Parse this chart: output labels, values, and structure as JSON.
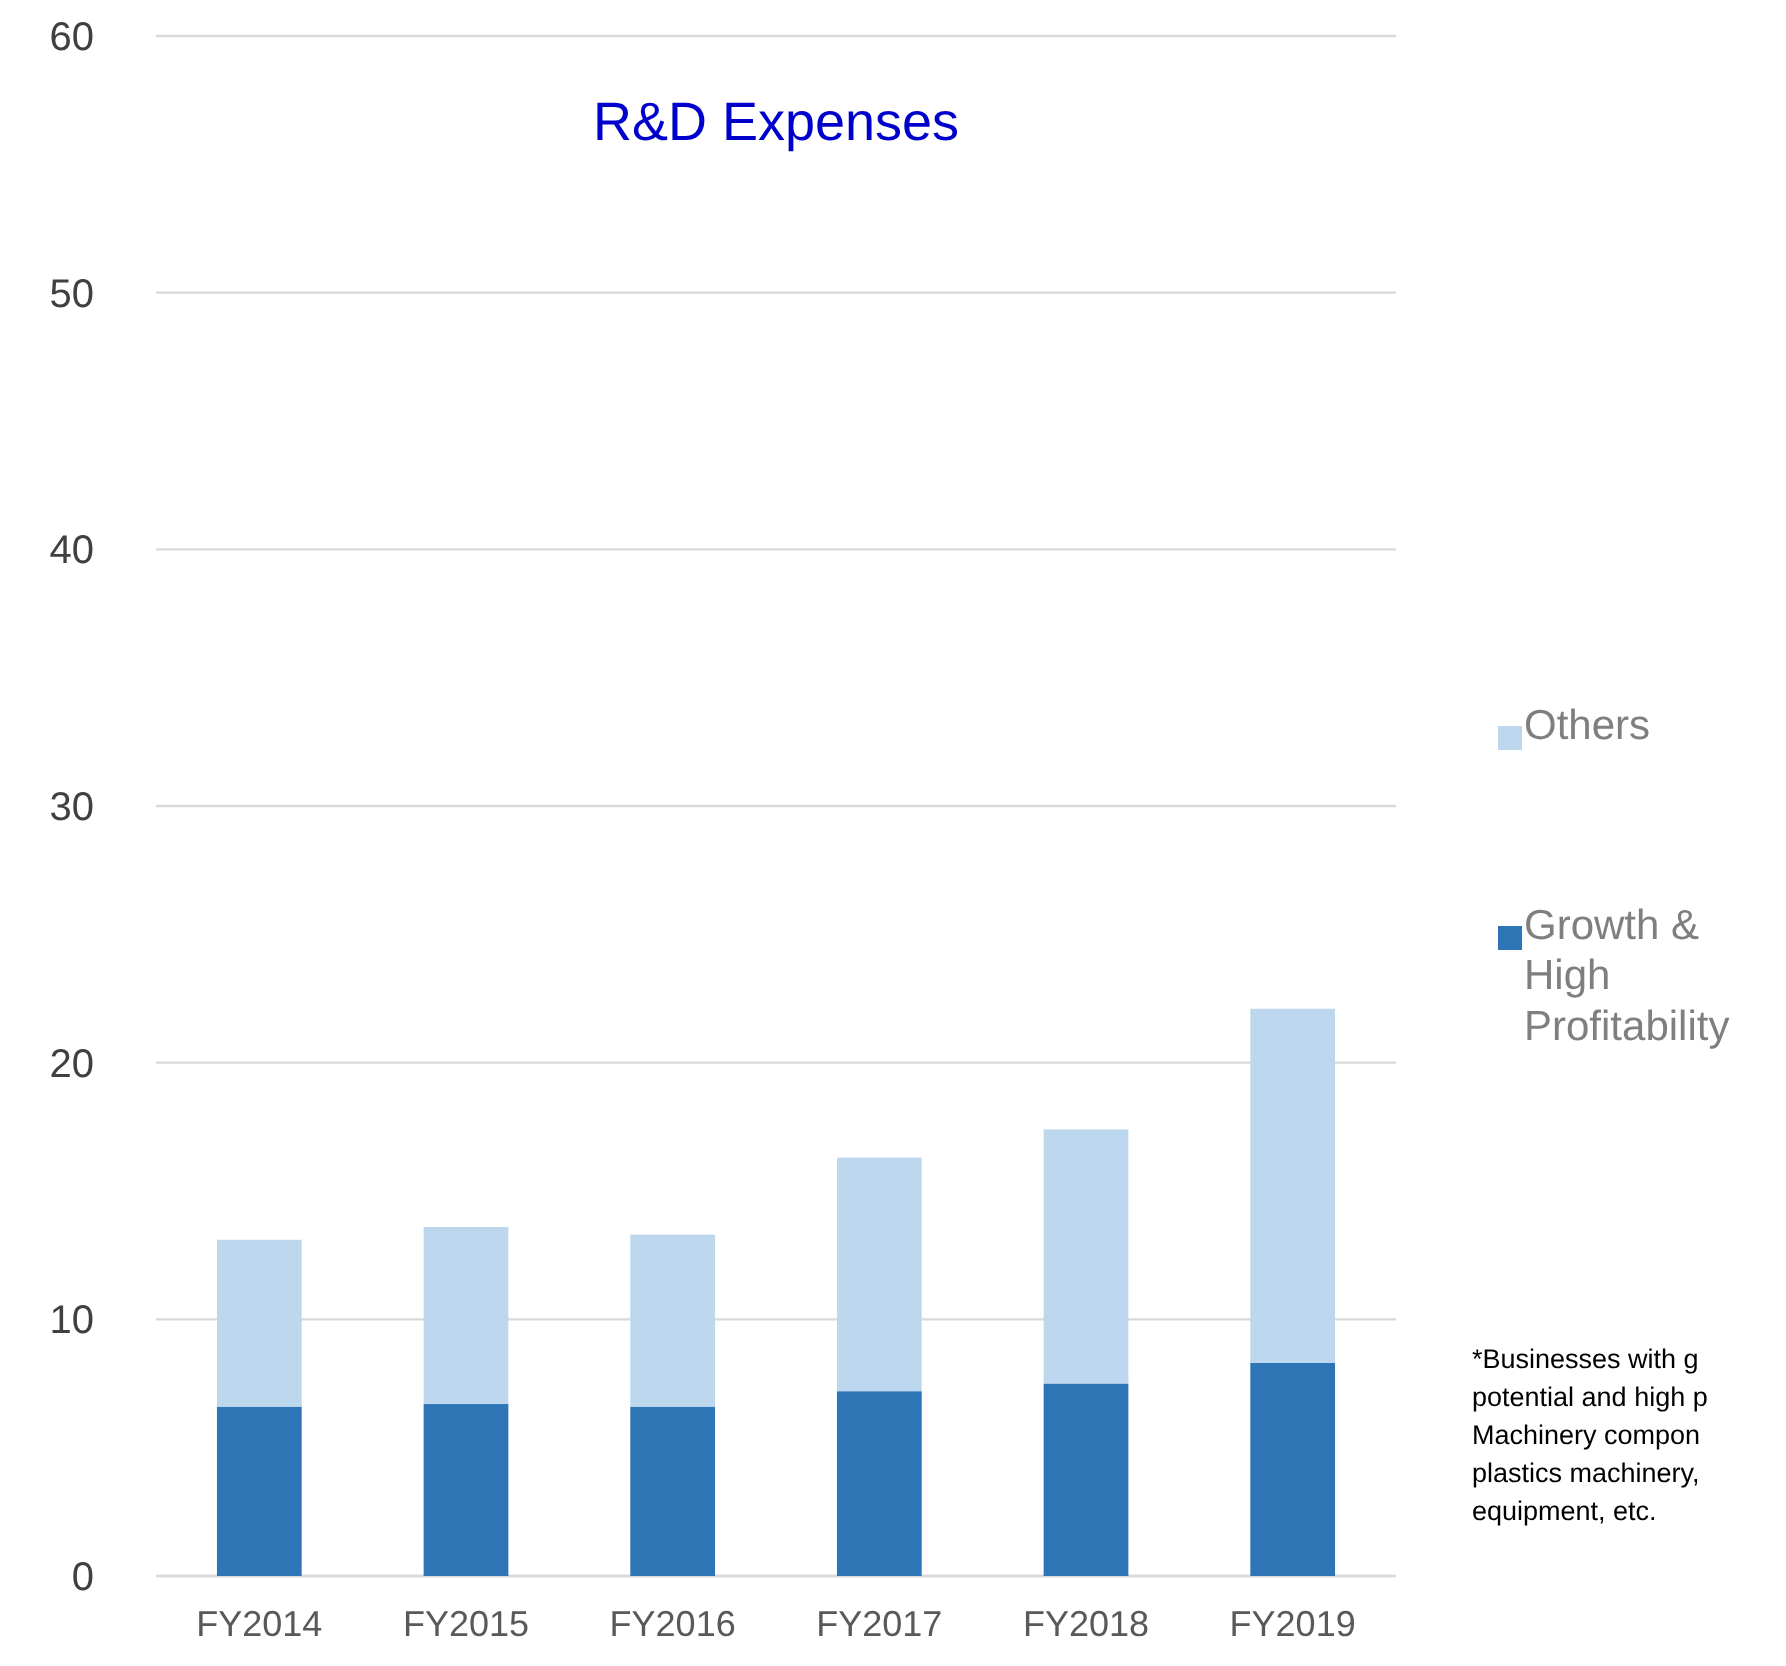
{
  "chart_data": {
    "type": "bar",
    "stacked": true,
    "title": "R&D Expenses",
    "categories": [
      "FY2014",
      "FY2015",
      "FY2016",
      "FY2017",
      "FY2018",
      "FY2019"
    ],
    "series": [
      {
        "name": "Growth & High Profitability",
        "color": "#2e75b6",
        "values": [
          6.6,
          6.7,
          6.6,
          7.2,
          7.5,
          8.3
        ]
      },
      {
        "name": "Others",
        "color": "#bdd7ee",
        "values": [
          6.5,
          6.9,
          6.7,
          9.1,
          9.9,
          13.8
        ]
      }
    ],
    "ylim": [
      0,
      60
    ],
    "yticks": [
      0,
      10,
      20,
      30,
      40,
      50,
      60
    ],
    "grid": "y",
    "legend": "right",
    "annotations": [
      "*Businesses with g\npotential and high p\nMachinery compon\nplastics machinery,\nequipment, etc."
    ]
  }
}
